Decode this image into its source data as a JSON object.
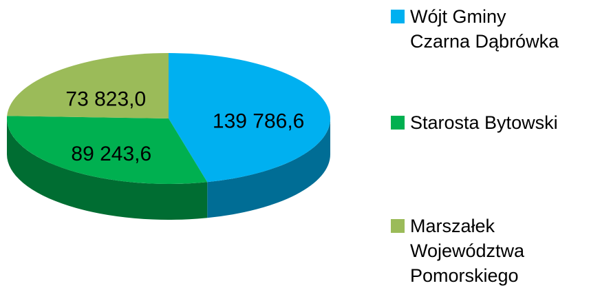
{
  "chart_data": {
    "type": "pie",
    "categories": [
      "Wójt Gminy\nCzarna Dąbrówka",
      "Starosta Bytowski",
      "Marszałek\nWojewództwa\nPomorskiego"
    ],
    "values": [
      139786.6,
      89243.6,
      73823.0
    ],
    "value_labels": [
      "139 786,6",
      "89 243,6",
      "73 823,0"
    ],
    "colors": [
      "#00b0f0",
      "#00b050",
      "#9bbb59"
    ],
    "legend": "right"
  }
}
